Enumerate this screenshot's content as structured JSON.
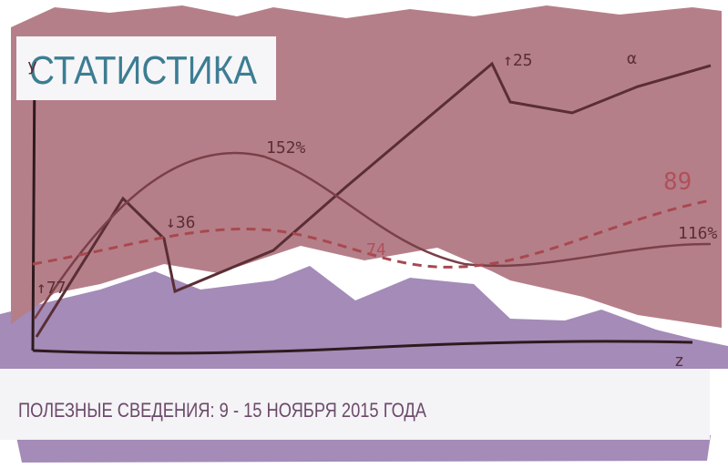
{
  "header": {
    "title": "СТАТИСТИКА",
    "subtitle": "ПОЛЕЗНЫЕ СВЕДЕНИЯ: 9 - 15 НОЯБРЯ 2015 ГОДА"
  },
  "illustration": {
    "labels": [
      "↑77",
      "↓36",
      "152%",
      "↑25",
      "α",
      "89",
      "74",
      "116%",
      "y",
      "z"
    ]
  }
}
